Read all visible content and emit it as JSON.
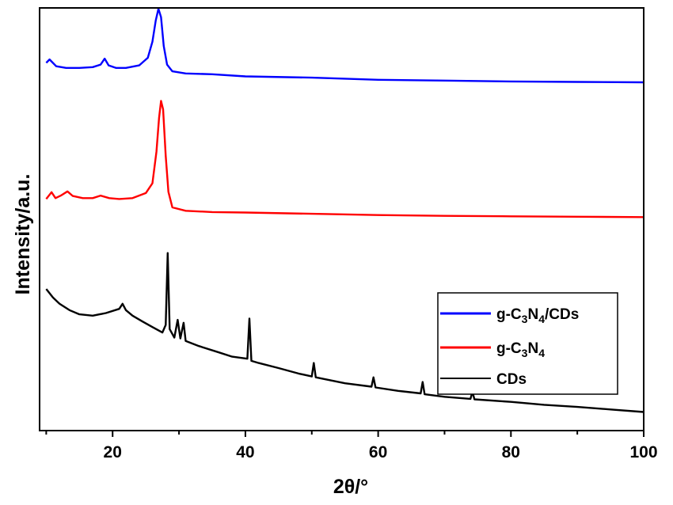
{
  "chart_data": {
    "type": "line",
    "xlabel": "2θ/°",
    "ylabel": "Intensity/a.u.",
    "xlim": [
      9,
      100
    ],
    "x_ticks": [
      20,
      40,
      60,
      80,
      100
    ],
    "y_ticks_labeled": false,
    "grid": false,
    "legend_position": "bottom-right",
    "series": [
      {
        "name": "g-C3N4/CDs",
        "legend_parts": [
          "g-C",
          "3",
          "N",
          "4",
          "/CDs"
        ],
        "color": "#0000ff",
        "points": [
          [
            10,
            0.87
          ],
          [
            10.5,
            0.878
          ],
          [
            11.5,
            0.862
          ],
          [
            13,
            0.858
          ],
          [
            15,
            0.858
          ],
          [
            17,
            0.86
          ],
          [
            18.2,
            0.866
          ],
          [
            18.8,
            0.88
          ],
          [
            19.4,
            0.864
          ],
          [
            20.5,
            0.858
          ],
          [
            22,
            0.858
          ],
          [
            24,
            0.864
          ],
          [
            25.3,
            0.882
          ],
          [
            26.0,
            0.92
          ],
          [
            26.5,
            0.97
          ],
          [
            26.9,
            0.998
          ],
          [
            27.3,
            0.978
          ],
          [
            27.7,
            0.91
          ],
          [
            28.2,
            0.866
          ],
          [
            29,
            0.85
          ],
          [
            31,
            0.845
          ],
          [
            35,
            0.843
          ],
          [
            40,
            0.838
          ],
          [
            50,
            0.835
          ],
          [
            60,
            0.83
          ],
          [
            70,
            0.828
          ],
          [
            80,
            0.826
          ],
          [
            90,
            0.825
          ],
          [
            100,
            0.824
          ]
        ]
      },
      {
        "name": "g-C3N4",
        "legend_parts": [
          "g-C",
          "3",
          "N",
          "4"
        ],
        "color": "#ff0000",
        "points": [
          [
            10,
            0.548
          ],
          [
            10.8,
            0.564
          ],
          [
            11.4,
            0.55
          ],
          [
            12.2,
            0.556
          ],
          [
            13.2,
            0.566
          ],
          [
            14.0,
            0.555
          ],
          [
            15.5,
            0.55
          ],
          [
            17,
            0.55
          ],
          [
            18.2,
            0.556
          ],
          [
            19.5,
            0.55
          ],
          [
            21,
            0.548
          ],
          [
            23,
            0.55
          ],
          [
            25,
            0.562
          ],
          [
            26.0,
            0.585
          ],
          [
            26.6,
            0.66
          ],
          [
            27.0,
            0.74
          ],
          [
            27.3,
            0.78
          ],
          [
            27.6,
            0.76
          ],
          [
            28.0,
            0.65
          ],
          [
            28.4,
            0.565
          ],
          [
            29,
            0.528
          ],
          [
            31,
            0.52
          ],
          [
            35,
            0.517
          ],
          [
            40,
            0.516
          ],
          [
            50,
            0.513
          ],
          [
            60,
            0.51
          ],
          [
            70,
            0.508
          ],
          [
            80,
            0.507
          ],
          [
            90,
            0.506
          ],
          [
            100,
            0.505
          ]
        ]
      },
      {
        "name": "CDs",
        "legend_parts": [
          "CDs"
        ],
        "color": "#000000",
        "points": [
          [
            10,
            0.335
          ],
          [
            11,
            0.315
          ],
          [
            12,
            0.3
          ],
          [
            13.5,
            0.285
          ],
          [
            15,
            0.275
          ],
          [
            17,
            0.272
          ],
          [
            19,
            0.278
          ],
          [
            21,
            0.288
          ],
          [
            21.5,
            0.3
          ],
          [
            22,
            0.285
          ],
          [
            23,
            0.272
          ],
          [
            24.5,
            0.258
          ],
          [
            26,
            0.245
          ],
          [
            27.5,
            0.232
          ],
          [
            28.0,
            0.25
          ],
          [
            28.3,
            0.42
          ],
          [
            28.6,
            0.24
          ],
          [
            29.3,
            0.22
          ],
          [
            29.8,
            0.262
          ],
          [
            30.2,
            0.218
          ],
          [
            30.7,
            0.255
          ],
          [
            31.0,
            0.212
          ],
          [
            33,
            0.2
          ],
          [
            36,
            0.185
          ],
          [
            38,
            0.175
          ],
          [
            40.3,
            0.17
          ],
          [
            40.6,
            0.265
          ],
          [
            40.9,
            0.165
          ],
          [
            42,
            0.16
          ],
          [
            45,
            0.148
          ],
          [
            48,
            0.135
          ],
          [
            50.0,
            0.128
          ],
          [
            50.3,
            0.16
          ],
          [
            50.6,
            0.126
          ],
          [
            55,
            0.112
          ],
          [
            59.0,
            0.104
          ],
          [
            59.3,
            0.126
          ],
          [
            59.6,
            0.102
          ],
          [
            63,
            0.094
          ],
          [
            66.4,
            0.088
          ],
          [
            66.7,
            0.115
          ],
          [
            67.0,
            0.086
          ],
          [
            70,
            0.08
          ],
          [
            73.9,
            0.075
          ],
          [
            74.2,
            0.092
          ],
          [
            74.5,
            0.074
          ],
          [
            80,
            0.068
          ],
          [
            85,
            0.061
          ],
          [
            90,
            0.056
          ],
          [
            95,
            0.05
          ],
          [
            100,
            0.044
          ]
        ]
      }
    ]
  }
}
